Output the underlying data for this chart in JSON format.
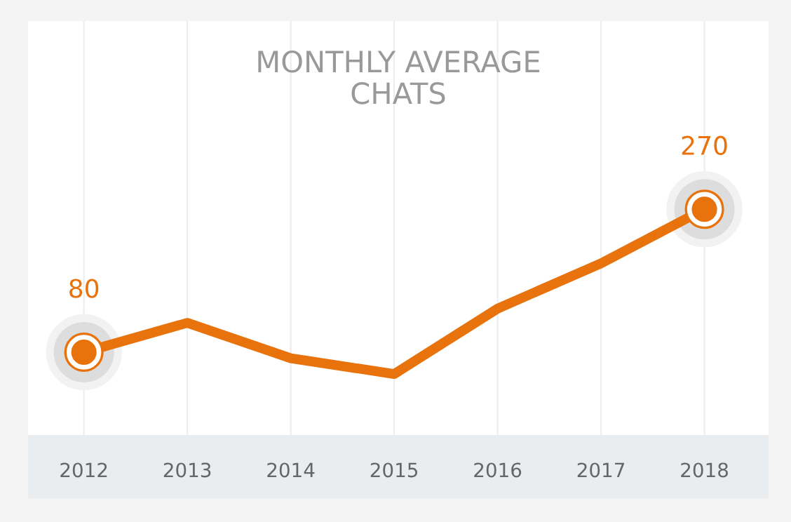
{
  "chart_data": {
    "type": "line",
    "title": "MONTHLY AVERAGE\nCHATS",
    "categories": [
      "2012",
      "2013",
      "2014",
      "2015",
      "2016",
      "2017",
      "2018"
    ],
    "series": [
      {
        "color": "#e8720c",
        "values": [
          80,
          119,
          72,
          51,
          138,
          198,
          270
        ],
        "value_labels": [
          "80",
          null,
          null,
          null,
          null,
          null,
          "270"
        ]
      }
    ],
    "ylim": [
      -30,
      520
    ],
    "grid": "x",
    "line_style": "solid",
    "legend": false
  }
}
